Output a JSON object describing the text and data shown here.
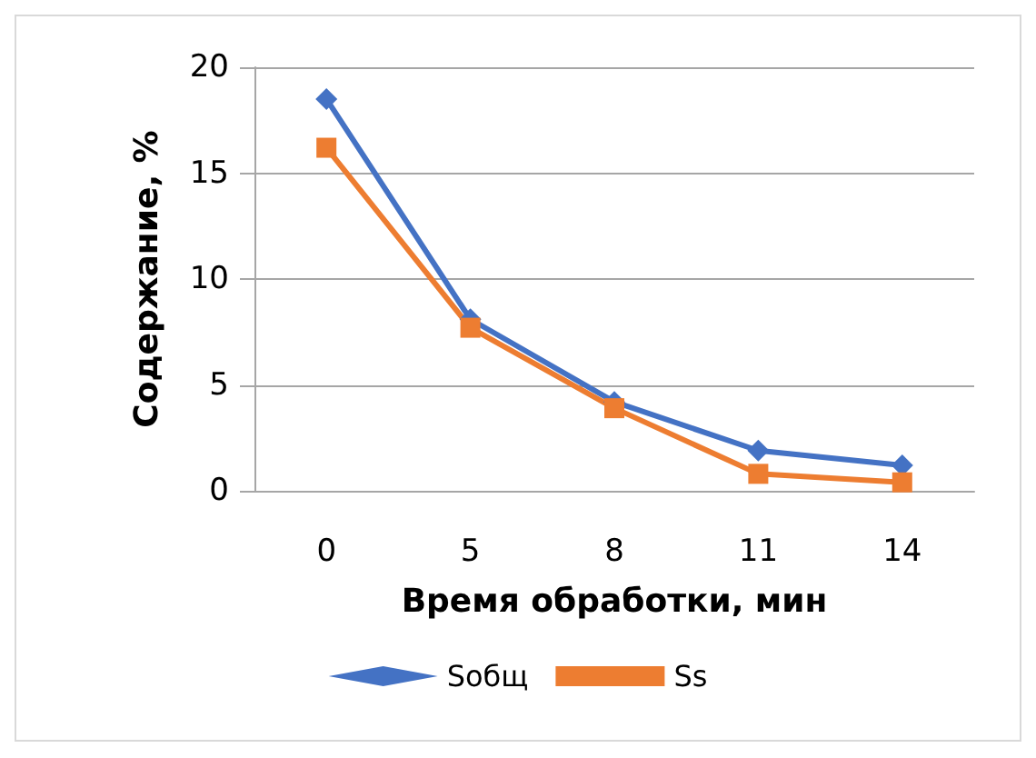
{
  "chart_data": {
    "type": "line",
    "xlabel": "Время обработки, мин",
    "ylabel": "Содержание, %",
    "categories": [
      "0",
      "5",
      "8",
      "11",
      "14"
    ],
    "series": [
      {
        "name": "Sобщ",
        "color": "#4472c4",
        "marker": "diamond",
        "values": [
          18.5,
          8.1,
          4.2,
          1.9,
          1.2
        ]
      },
      {
        "name": "Ss",
        "color": "#ed7d31",
        "marker": "square",
        "values": [
          16.2,
          7.7,
          3.9,
          0.8,
          0.4
        ]
      }
    ],
    "ylim": [
      0,
      20
    ],
    "yticks": [
      0,
      5,
      10,
      15,
      20
    ],
    "grid": "y",
    "legend": "bottom",
    "line_style": "solid"
  }
}
